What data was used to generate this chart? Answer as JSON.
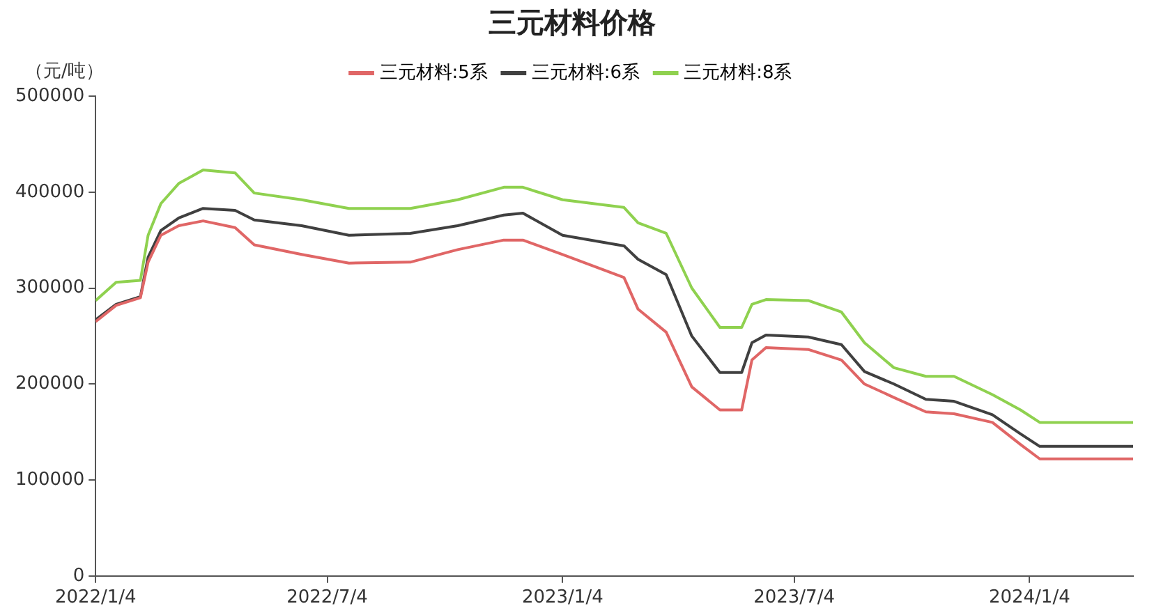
{
  "chart_data": {
    "type": "line",
    "title": "三元材料价格",
    "ylabel": "（元/吨）",
    "x": [
      "2022-01-04",
      "2022-01-20",
      "2022-02-08",
      "2022-02-14",
      "2022-02-24",
      "2022-03-10",
      "2022-03-29",
      "2022-04-23",
      "2022-05-08",
      "2022-06-14",
      "2022-07-21",
      "2022-09-07",
      "2022-10-14",
      "2022-11-19",
      "2022-12-04",
      "2023-01-04",
      "2023-02-21",
      "2023-03-04",
      "2023-03-26",
      "2023-04-15",
      "2023-05-07",
      "2023-05-24",
      "2023-06-01",
      "2023-06-12",
      "2023-07-15",
      "2023-08-10",
      "2023-08-28",
      "2023-09-20",
      "2023-10-15",
      "2023-11-06",
      "2023-12-06",
      "2023-12-28",
      "2024-01-12",
      "2024-03-25"
    ],
    "series": [
      {
        "name": "三元材料:5系",
        "color": "#e06666",
        "values": [
          265000,
          282000,
          290000,
          327000,
          355000,
          365000,
          370000,
          363000,
          345000,
          335000,
          326000,
          327000,
          340000,
          350000,
          350000,
          335000,
          311000,
          278000,
          254000,
          197000,
          173000,
          173000,
          225000,
          238000,
          236000,
          225000,
          200000,
          186000,
          171000,
          169000,
          160000,
          137000,
          122000,
          122000
        ]
      },
      {
        "name": "三元材料:6系",
        "color": "#404040",
        "values": [
          267000,
          283000,
          291000,
          332000,
          360000,
          373000,
          383000,
          381000,
          371000,
          365000,
          355000,
          357000,
          365000,
          376000,
          378000,
          355000,
          344000,
          330000,
          314000,
          250000,
          212000,
          212000,
          243000,
          251000,
          249000,
          241000,
          213000,
          200000,
          184000,
          182000,
          168000,
          148000,
          135000,
          135000
        ]
      },
      {
        "name": "三元材料:8系",
        "color": "#8fd14f",
        "values": [
          287000,
          306000,
          308000,
          355000,
          388000,
          409000,
          423000,
          420000,
          399000,
          392000,
          383000,
          383000,
          392000,
          405000,
          405000,
          392000,
          384000,
          368000,
          357000,
          300000,
          259000,
          259000,
          283000,
          288000,
          287000,
          275000,
          243000,
          217000,
          208000,
          208000,
          189000,
          173000,
          160000,
          160000
        ]
      }
    ],
    "xlim": [
      "2022-01-04",
      "2024-03-25"
    ],
    "xticks": [
      {
        "value": "2022-01-04",
        "label": "2022/1/4"
      },
      {
        "value": "2022-07-04",
        "label": "2022/7/4"
      },
      {
        "value": "2023-01-04",
        "label": "2023/1/4"
      },
      {
        "value": "2023-07-04",
        "label": "2023/7/4"
      },
      {
        "value": "2024-01-04",
        "label": "2024/1/4"
      }
    ],
    "ylim": [
      0,
      500000
    ],
    "yticks": [
      0,
      100000,
      200000,
      300000,
      400000,
      500000
    ],
    "grid": false,
    "legend": "top",
    "marker": "none",
    "line_style": "solid"
  }
}
